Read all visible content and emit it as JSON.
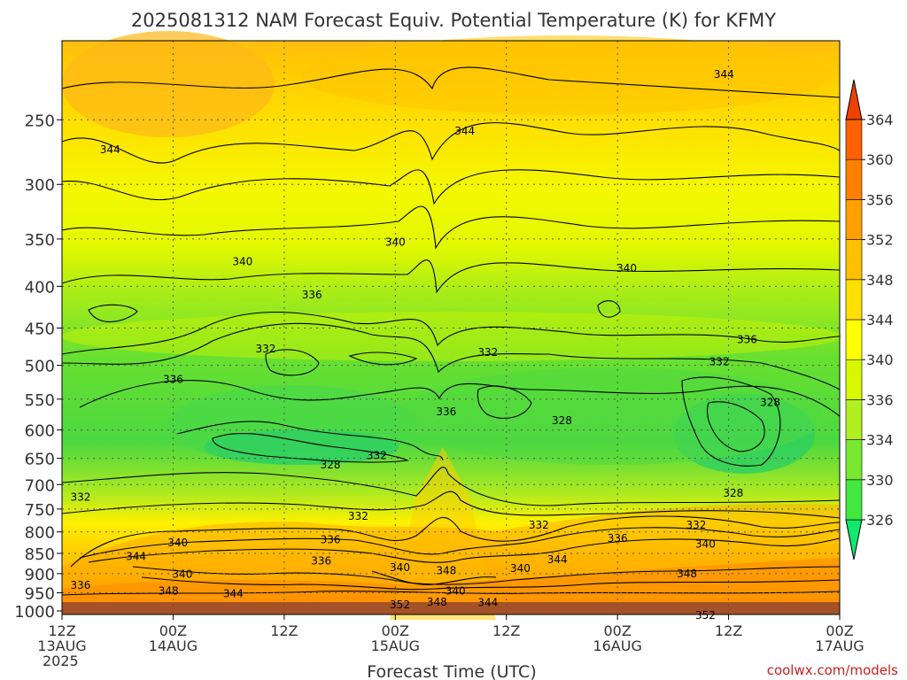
{
  "chart_data": {
    "type": "heatmap",
    "title": "2025081312 NAM Forecast Equiv. Potential Temperature (K) for KFMY",
    "xlabel": "Forecast Time (UTC)",
    "ylabel": "",
    "x_ticks": [
      {
        "hours": 0,
        "lines": [
          "12Z",
          "13AUG",
          "2025"
        ]
      },
      {
        "hours": 12,
        "lines": [
          "00Z",
          "14AUG"
        ]
      },
      {
        "hours": 24,
        "lines": [
          "12Z"
        ]
      },
      {
        "hours": 36,
        "lines": [
          "00Z",
          "15AUG"
        ]
      },
      {
        "hours": 48,
        "lines": [
          "12Z"
        ]
      },
      {
        "hours": 60,
        "lines": [
          "00Z",
          "16AUG"
        ]
      },
      {
        "hours": 72,
        "lines": [
          "12Z"
        ]
      },
      {
        "hours": 84,
        "lines": [
          "00Z",
          "17AUG"
        ]
      }
    ],
    "xlim": [
      0,
      84
    ],
    "y_ticks": [
      250,
      300,
      350,
      400,
      450,
      500,
      550,
      600,
      650,
      700,
      750,
      800,
      850,
      900,
      950,
      1000
    ],
    "ylim": [
      200,
      1010
    ],
    "y_scale": "log",
    "colorbar": {
      "ticks": [
        326,
        330,
        334,
        336,
        340,
        344,
        348,
        352,
        356,
        360,
        364
      ],
      "colors": [
        "#10e870",
        "#40e840",
        "#78e830",
        "#b0f020",
        "#d8f800",
        "#ffff00",
        "#ffe000",
        "#ffc000",
        "#ffa000",
        "#ff8000",
        "#ff6000",
        "#f04000"
      ]
    },
    "contour_labels": [
      {
        "text": "344",
        "hours": 5.2,
        "p": 272
      },
      {
        "text": "344",
        "hours": 43.5,
        "p": 258
      },
      {
        "text": "344",
        "hours": 71.5,
        "p": 220
      },
      {
        "text": "340",
        "hours": 19.5,
        "p": 373
      },
      {
        "text": "340",
        "hours": 36,
        "p": 353
      },
      {
        "text": "340",
        "hours": 61,
        "p": 380
      },
      {
        "text": "336",
        "hours": 27,
        "p": 410
      },
      {
        "text": "336",
        "hours": 12,
        "p": 520
      },
      {
        "text": "336",
        "hours": 41.5,
        "p": 570
      },
      {
        "text": "336",
        "hours": 74,
        "p": 465
      },
      {
        "text": "332",
        "hours": 22,
        "p": 477
      },
      {
        "text": "332",
        "hours": 46,
        "p": 482
      },
      {
        "text": "332",
        "hours": 71,
        "p": 495
      },
      {
        "text": "332",
        "hours": 34,
        "p": 645
      },
      {
        "text": "332",
        "hours": 2,
        "p": 725
      },
      {
        "text": "332",
        "hours": 32,
        "p": 765
      },
      {
        "text": "332",
        "hours": 51.5,
        "p": 785
      },
      {
        "text": "332",
        "hours": 68.5,
        "p": 785
      },
      {
        "text": "328",
        "hours": 29,
        "p": 662
      },
      {
        "text": "328",
        "hours": 54,
        "p": 584
      },
      {
        "text": "328",
        "hours": 76.5,
        "p": 555
      },
      {
        "text": "328",
        "hours": 72.5,
        "p": 717
      },
      {
        "text": "344",
        "hours": 8,
        "p": 857
      },
      {
        "text": "340",
        "hours": 12.5,
        "p": 825
      },
      {
        "text": "340",
        "hours": 13,
        "p": 902
      },
      {
        "text": "336",
        "hours": 29,
        "p": 818
      },
      {
        "text": "336",
        "hours": 28,
        "p": 868
      },
      {
        "text": "336",
        "hours": 2,
        "p": 930
      },
      {
        "text": "348",
        "hours": 11.5,
        "p": 945
      },
      {
        "text": "344",
        "hours": 18.5,
        "p": 952
      },
      {
        "text": "340",
        "hours": 36.5,
        "p": 885
      },
      {
        "text": "348",
        "hours": 41.5,
        "p": 892
      },
      {
        "text": "340",
        "hours": 49.5,
        "p": 887
      },
      {
        "text": "344",
        "hours": 53.5,
        "p": 865
      },
      {
        "text": "336",
        "hours": 60,
        "p": 815
      },
      {
        "text": "340",
        "hours": 69.5,
        "p": 828
      },
      {
        "text": "348",
        "hours": 67.5,
        "p": 900
      },
      {
        "text": "340",
        "hours": 42.5,
        "p": 945
      },
      {
        "text": "352",
        "hours": 36.5,
        "p": 983
      },
      {
        "text": "348",
        "hours": 40.5,
        "p": 975
      },
      {
        "text": "344",
        "hours": 46,
        "p": 977
      },
      {
        "text": "352",
        "hours": 69.5,
        "p": 1013
      }
    ],
    "grid": true,
    "legend": "right"
  },
  "footer": {
    "credit": "coolwx.com/models"
  }
}
